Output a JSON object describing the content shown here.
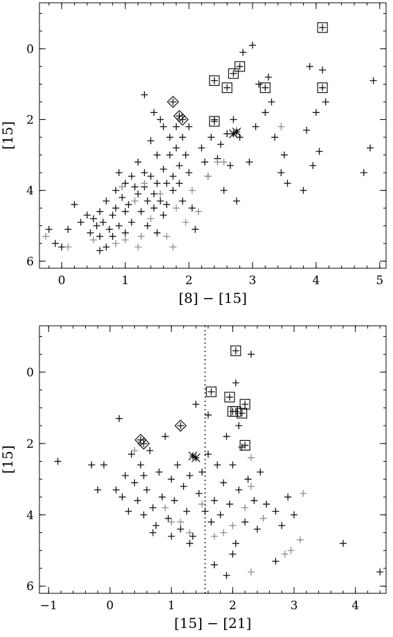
{
  "chart_data": [
    {
      "type": "scatter",
      "xlabel": "[8] − [15]",
      "ylabel": "[15]",
      "xlim": [
        -0.35,
        5.1
      ],
      "ylim": [
        6.2,
        -1.3
      ],
      "y_inverted": true,
      "xticks": [
        0,
        1,
        2,
        3,
        4,
        5
      ],
      "yticks": [
        0,
        2,
        4,
        6
      ],
      "xtick_labels": [
        "0",
        "1",
        "2",
        "3",
        "4",
        "5"
      ],
      "ytick_labels": [
        "0",
        "2",
        "4",
        "6"
      ],
      "grid": false,
      "colors": {
        "dark": "#111111",
        "grey": "#8c8c8c"
      },
      "series": [
        {
          "style": "dark-plus",
          "points": [
            [
              -0.2,
              5.1
            ],
            [
              -0.1,
              5.5
            ],
            [
              0.0,
              5.6
            ],
            [
              0.1,
              5.1
            ],
            [
              0.2,
              4.4
            ],
            [
              0.3,
              4.9
            ],
            [
              0.4,
              4.7
            ],
            [
              0.45,
              5.2
            ],
            [
              0.5,
              4.8
            ],
            [
              0.55,
              5.0
            ],
            [
              0.6,
              4.6
            ],
            [
              0.6,
              5.3
            ],
            [
              0.65,
              4.9
            ],
            [
              0.7,
              5.6
            ],
            [
              0.7,
              4.3
            ],
            [
              0.75,
              5.1
            ],
            [
              0.8,
              4.7
            ],
            [
              0.8,
              5.3
            ],
            [
              0.85,
              4.0
            ],
            [
              0.85,
              4.5
            ],
            [
              0.9,
              3.5
            ],
            [
              0.9,
              5.0
            ],
            [
              0.95,
              4.2
            ],
            [
              1.0,
              3.8
            ],
            [
              1.0,
              4.6
            ],
            [
              1.0,
              5.2
            ],
            [
              1.05,
              4.4
            ],
            [
              1.1,
              3.6
            ],
            [
              1.1,
              4.9
            ],
            [
              1.15,
              3.9
            ],
            [
              1.2,
              3.2
            ],
            [
              1.2,
              4.1
            ],
            [
              1.25,
              4.6
            ],
            [
              1.3,
              3.5
            ],
            [
              1.3,
              3.9
            ],
            [
              1.35,
              4.3
            ],
            [
              1.35,
              5.0
            ],
            [
              1.4,
              2.6
            ],
            [
              1.4,
              3.6
            ],
            [
              1.45,
              4.1
            ],
            [
              1.45,
              4.5
            ],
            [
              1.5,
              3.0
            ],
            [
              1.5,
              3.8
            ],
            [
              1.55,
              4.3
            ],
            [
              1.6,
              2.2
            ],
            [
              1.6,
              3.4
            ],
            [
              1.6,
              4.7
            ],
            [
              1.65,
              3.8
            ],
            [
              1.7,
              2.5
            ],
            [
              1.7,
              3.0
            ],
            [
              1.75,
              3.6
            ],
            [
              1.75,
              4.0
            ],
            [
              1.8,
              2.2
            ],
            [
              1.8,
              2.8
            ],
            [
              1.85,
              3.3
            ],
            [
              1.85,
              3.8
            ],
            [
              1.9,
              2.5
            ],
            [
              1.9,
              4.3
            ],
            [
              1.95,
              3.0
            ],
            [
              2.0,
              2.2
            ],
            [
              2.0,
              3.5
            ],
            [
              2.05,
              4.5
            ],
            [
              2.1,
              5.1
            ],
            [
              2.2,
              2.8
            ],
            [
              2.25,
              3.2
            ],
            [
              2.3,
              3.6
            ],
            [
              2.35,
              2.5
            ],
            [
              2.4,
              2.0
            ],
            [
              2.45,
              3.1
            ],
            [
              2.5,
              2.7
            ],
            [
              2.55,
              4.0
            ],
            [
              2.6,
              2.4
            ],
            [
              2.65,
              3.3
            ],
            [
              2.7,
              2.0
            ],
            [
              2.75,
              4.3
            ],
            [
              2.8,
              2.5
            ],
            [
              2.85,
              0.1
            ],
            [
              2.95,
              3.2
            ],
            [
              3.0,
              -0.1
            ],
            [
              3.05,
              2.2
            ],
            [
              3.1,
              1.0
            ],
            [
              3.2,
              1.8
            ],
            [
              3.25,
              0.8
            ],
            [
              3.3,
              1.5
            ],
            [
              3.35,
              2.5
            ],
            [
              3.45,
              3.5
            ],
            [
              3.5,
              3.0
            ],
            [
              3.55,
              3.8
            ],
            [
              3.8,
              4.0
            ],
            [
              3.85,
              2.3
            ],
            [
              3.9,
              0.5
            ],
            [
              3.95,
              3.3
            ],
            [
              4.0,
              1.8
            ],
            [
              4.05,
              2.9
            ],
            [
              4.1,
              0.6
            ],
            [
              4.15,
              1.5
            ],
            [
              4.75,
              3.5
            ],
            [
              4.85,
              2.8
            ],
            [
              4.9,
              0.9
            ],
            [
              1.3,
              1.3
            ],
            [
              1.45,
              1.8
            ],
            [
              1.55,
              2.0
            ],
            [
              0.6,
              5.7
            ],
            [
              1.5,
              5.2
            ],
            [
              1.65,
              4.4
            ]
          ]
        },
        {
          "style": "grey-plus",
          "points": [
            [
              -0.25,
              5.3
            ],
            [
              0.1,
              5.6
            ],
            [
              0.5,
              5.4
            ],
            [
              0.85,
              5.5
            ],
            [
              1.0,
              5.4
            ],
            [
              1.15,
              4.3
            ],
            [
              1.25,
              5.3
            ],
            [
              1.3,
              3.8
            ],
            [
              1.4,
              4.8
            ],
            [
              1.55,
              4.1
            ],
            [
              1.65,
              5.3
            ],
            [
              1.75,
              5.6
            ],
            [
              1.8,
              4.5
            ],
            [
              1.95,
              4.9
            ],
            [
              2.05,
              4.0
            ],
            [
              2.15,
              4.6
            ],
            [
              2.3,
              3.6
            ],
            [
              2.45,
              3.2
            ],
            [
              2.55,
              3.2
            ],
            [
              2.75,
              2.3
            ],
            [
              3.45,
              2.2
            ],
            [
              1.2,
              5.6
            ],
            [
              0.95,
              3.9
            ]
          ]
        },
        {
          "style": "boxed",
          "points": [
            [
              4.1,
              -0.6
            ],
            [
              2.8,
              0.5
            ],
            [
              2.7,
              0.7
            ],
            [
              2.4,
              0.9
            ],
            [
              2.6,
              1.1
            ],
            [
              3.2,
              1.1
            ],
            [
              4.1,
              1.1
            ],
            [
              2.4,
              2.05
            ]
          ]
        },
        {
          "style": "diamond",
          "points": [
            [
              1.75,
              1.5
            ],
            [
              1.85,
              1.9
            ],
            [
              1.9,
              2.0
            ]
          ]
        },
        {
          "style": "x-marked",
          "points": [
            [
              2.7,
              2.4
            ],
            [
              2.75,
              2.35
            ]
          ]
        }
      ]
    },
    {
      "type": "scatter",
      "xlabel": "[15] − [21]",
      "ylabel": "[15]",
      "xlim": [
        -1.15,
        4.5
      ],
      "ylim": [
        6.2,
        -1.3
      ],
      "y_inverted": true,
      "xticks": [
        -1,
        0,
        1,
        2,
        3,
        4
      ],
      "yticks": [
        0,
        2,
        4,
        6
      ],
      "xtick_labels": [
        "−1",
        "0",
        "1",
        "2",
        "3",
        "4"
      ],
      "ytick_labels": [
        "0",
        "2",
        "4",
        "6"
      ],
      "grid": false,
      "vline_x": 1.55,
      "colors": {
        "dark": "#111111",
        "grey": "#8c8c8c"
      },
      "series": [
        {
          "style": "dark-plus",
          "points": [
            [
              -0.85,
              2.5
            ],
            [
              -0.3,
              2.6
            ],
            [
              -0.2,
              3.3
            ],
            [
              -0.1,
              2.6
            ],
            [
              0.15,
              1.3
            ],
            [
              0.2,
              3.5
            ],
            [
              0.25,
              2.9
            ],
            [
              0.3,
              3.9
            ],
            [
              0.35,
              2.3
            ],
            [
              0.4,
              3.1
            ],
            [
              0.45,
              3.6
            ],
            [
              0.5,
              2.6
            ],
            [
              0.55,
              4.0
            ],
            [
              0.6,
              3.3
            ],
            [
              0.65,
              2.2
            ],
            [
              0.7,
              3.8
            ],
            [
              0.75,
              4.3
            ],
            [
              0.8,
              2.8
            ],
            [
              0.85,
              3.5
            ],
            [
              0.9,
              1.8
            ],
            [
              0.95,
              4.1
            ],
            [
              1.0,
              3.0
            ],
            [
              1.05,
              3.6
            ],
            [
              1.1,
              2.6
            ],
            [
              1.15,
              4.4
            ],
            [
              1.2,
              3.2
            ],
            [
              1.25,
              3.9
            ],
            [
              1.3,
              2.9
            ],
            [
              1.35,
              4.6
            ],
            [
              1.4,
              0.9
            ],
            [
              1.45,
              3.4
            ],
            [
              1.5,
              2.8
            ],
            [
              1.55,
              3.9
            ],
            [
              1.6,
              2.3
            ],
            [
              1.65,
              4.2
            ],
            [
              1.7,
              3.6
            ],
            [
              1.75,
              2.6
            ],
            [
              1.8,
              4.0
            ],
            [
              1.85,
              3.1
            ],
            [
              1.9,
              1.8
            ],
            [
              1.95,
              3.7
            ],
            [
              2.0,
              2.6
            ],
            [
              2.05,
              4.8
            ],
            [
              2.1,
              3.3
            ],
            [
              2.15,
              2.1
            ],
            [
              2.2,
              4.2
            ],
            [
              2.25,
              3.0
            ],
            [
              2.3,
              -0.5
            ],
            [
              2.35,
              3.6
            ],
            [
              2.4,
              4.4
            ],
            [
              2.45,
              2.8
            ],
            [
              2.55,
              3.7
            ],
            [
              2.7,
              3.9
            ],
            [
              2.8,
              4.3
            ],
            [
              2.9,
              3.5
            ],
            [
              3.0,
              4.0
            ],
            [
              3.8,
              4.8
            ],
            [
              4.4,
              5.6
            ],
            [
              1.6,
              1.2
            ],
            [
              1.7,
              5.4
            ],
            [
              1.9,
              5.7
            ],
            [
              2.0,
              5.1
            ],
            [
              2.1,
              1.5
            ],
            [
              2.05,
              0.3
            ],
            [
              2.7,
              5.3
            ],
            [
              0.7,
              4.5
            ],
            [
              1.0,
              4.6
            ],
            [
              1.3,
              4.8
            ],
            [
              0.1,
              3.3
            ],
            [
              0.55,
              2.9
            ]
          ]
        },
        {
          "style": "grey-plus",
          "points": [
            [
              0.4,
              2.2
            ],
            [
              0.9,
              3.8
            ],
            [
              1.15,
              4.2
            ],
            [
              1.3,
              4.5
            ],
            [
              1.5,
              3.7
            ],
            [
              1.7,
              4.6
            ],
            [
              1.85,
              4.5
            ],
            [
              2.0,
              4.3
            ],
            [
              2.2,
              3.8
            ],
            [
              2.3,
              2.4
            ],
            [
              2.3,
              3.2
            ],
            [
              2.5,
              4.1
            ],
            [
              2.85,
              5.1
            ],
            [
              2.95,
              5.0
            ],
            [
              3.1,
              4.7
            ],
            [
              3.15,
              3.4
            ],
            [
              2.3,
              5.6
            ],
            [
              1.0,
              4.2
            ]
          ]
        },
        {
          "style": "boxed",
          "points": [
            [
              2.05,
              -0.6
            ],
            [
              1.65,
              0.55
            ],
            [
              1.95,
              0.7
            ],
            [
              2.2,
              0.9
            ],
            [
              2.05,
              1.1
            ],
            [
              2.0,
              1.1
            ],
            [
              2.15,
              1.15
            ],
            [
              2.2,
              2.05
            ]
          ]
        },
        {
          "style": "diamond",
          "points": [
            [
              1.15,
              1.5
            ],
            [
              0.5,
              1.9
            ],
            [
              0.55,
              2.0
            ]
          ]
        },
        {
          "style": "x-marked",
          "points": [
            [
              1.35,
              2.35
            ],
            [
              1.4,
              2.4
            ]
          ]
        }
      ]
    }
  ]
}
